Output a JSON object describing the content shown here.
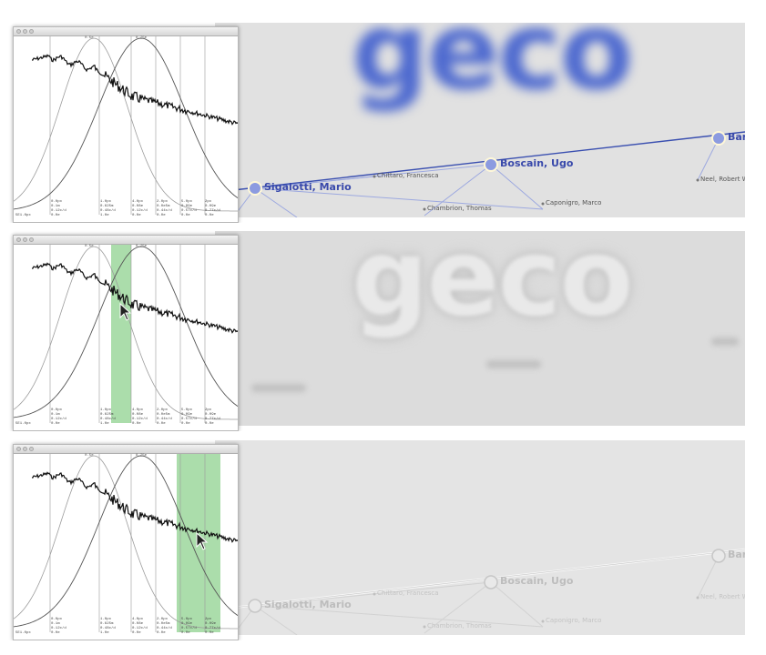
{
  "logo_text": "geco",
  "nodes": {
    "sigalotti": "Sigalotti, Mario",
    "boscain": "Boscain, Ugo",
    "bari": "Bari",
    "chittaro": "Chittaro, Francesca",
    "chambrion": "Chambrion, Thomas",
    "caponigro": "Caponigro, Marco",
    "neel": "Neel, Robert W"
  },
  "plot": {
    "corner_label": "5E1.0px",
    "peak_labels": [
      "0.5e",
      "8.75e"
    ],
    "ticks": [
      "0.0px\n0.1m\n0.12c/d\n0.0e",
      "1.0px\n0.625m\n0.48c/d\n1.0e",
      "4.0px\n0.08e\n0.12c/d\n0.0e",
      "2.0px\n0.0e5m\n0.44c/d\n0.0e",
      "5.0px\n0.09e\n0.57c/d\n0.0e",
      "2px\n0.09e\n0.77c/d\n0.0e"
    ]
  },
  "colors": {
    "highlight": "#8fd18f",
    "node": "#8c9be0",
    "edge": "#3a4fb0",
    "logo_blue": "#3f5fcb"
  }
}
